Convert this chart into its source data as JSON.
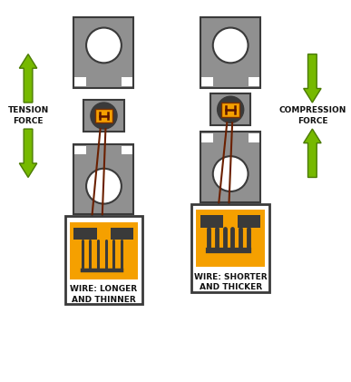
{
  "bg_color": "#ffffff",
  "gray": "#909090",
  "mid_gray": "#6a6a6a",
  "dark_gray": "#3a3a3a",
  "orange": "#F5A000",
  "green": "#76B900",
  "dark_green": "#4a7a00",
  "wire_color": "#6b2000",
  "text_color": "#222222",
  "tension_label": "TENSION\nFORCE",
  "compression_label": "COMPRESSION\nFORCE",
  "left_label": "WIRE: LONGER\nAND THINNER",
  "right_label": "WIRE: SHORTER\nAND THICKER",
  "figsize": [
    3.87,
    4.21
  ],
  "dpi": 100
}
